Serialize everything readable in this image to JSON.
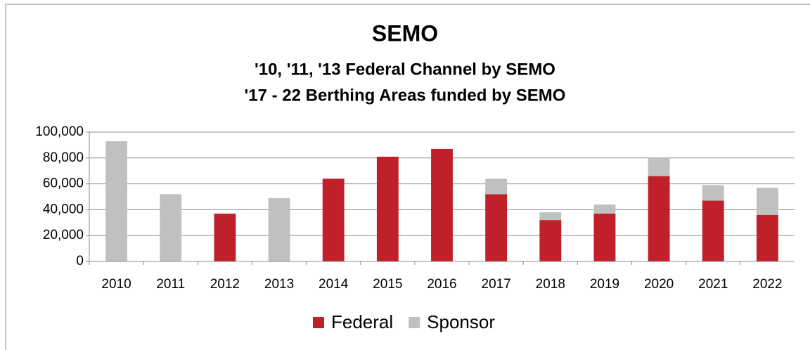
{
  "chart_data": {
    "type": "bar",
    "stacked": true,
    "title": "SEMO",
    "subtitle": [
      "'10, '11, '13  Federal Channel by SEMO",
      "'17 - 22 Berthing Areas funded by SEMO"
    ],
    "categories": [
      "2010",
      "2011",
      "2012",
      "2013",
      "2014",
      "2015",
      "2016",
      "2017",
      "2018",
      "2019",
      "2020",
      "2021",
      "2022"
    ],
    "series": [
      {
        "name": "Federal",
        "color": "#c0202a",
        "values": [
          0,
          0,
          37000,
          0,
          64000,
          81000,
          87000,
          52000,
          32000,
          37000,
          66000,
          47000,
          36000
        ]
      },
      {
        "name": "Sponsor",
        "color": "#c0c0c0",
        "values": [
          93000,
          52000,
          0,
          49000,
          0,
          0,
          0,
          12000,
          6000,
          7000,
          14000,
          12000,
          21000
        ]
      }
    ],
    "ylim": [
      0,
      100000
    ],
    "yticks": [
      0,
      {
        "value": 20000,
        "label": "20,000"
      },
      {
        "value": 40000,
        "label": "40,000"
      },
      {
        "value": 60000,
        "label": "60,000"
      },
      {
        "value": 80000,
        "label": "80,000"
      },
      {
        "value": 100000,
        "label": "100,000"
      }
    ],
    "grid": true,
    "legend": "bottom"
  }
}
